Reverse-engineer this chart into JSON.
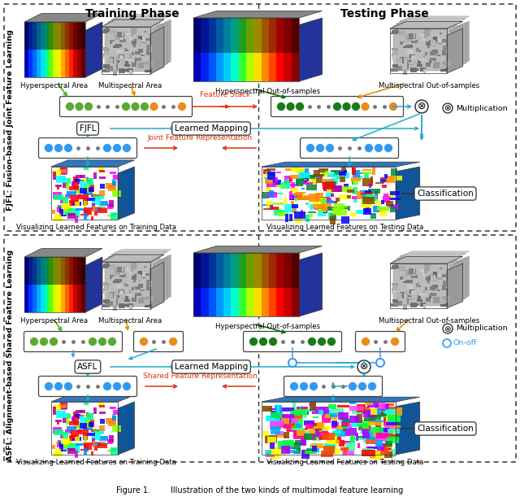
{
  "bg_color": "#ffffff",
  "training_phase_label": "Training Phase",
  "testing_phase_label": "Testing Phase",
  "fjfl_label": "FJFL: Fusion-based Joint Feature Learning",
  "asfl_label": "ASFL: Alignment-based Shared Feature Learning",
  "green_color": "#5aaa32",
  "dark_green_color": "#1a7a1a",
  "orange_color": "#e88c20",
  "blue_color": "#3399ee",
  "cyan_color": "#22aacc",
  "red_color": "#dd3311",
  "feature_stack_label": "Feature Stack",
  "learned_mapping_label": "Learned Mapping",
  "joint_feat_label": "Joint Feature Representation",
  "shared_feat_label": "Shared Feature Representation",
  "fjfl_box_label": "FJFL",
  "asfl_box_label": "ASFL",
  "classification_label": "Classification",
  "multiply_label": "Multiplication",
  "onoff_label": "On-off",
  "hyp_area_label": "Hyperspectral Area",
  "multi_area_label": "Multispectral Area",
  "hyp_oos_label": "Hyperspectral Out-of-samples",
  "multi_oos_label": "Multispectral Out-of-samples",
  "viz_train_label": "Visualizing Learned Features on Training Data",
  "viz_test_label": "Visualizing Learned Features on Testing Data",
  "caption": "Figure 1.        Illustration of the two kinds of multimodal feature learning"
}
